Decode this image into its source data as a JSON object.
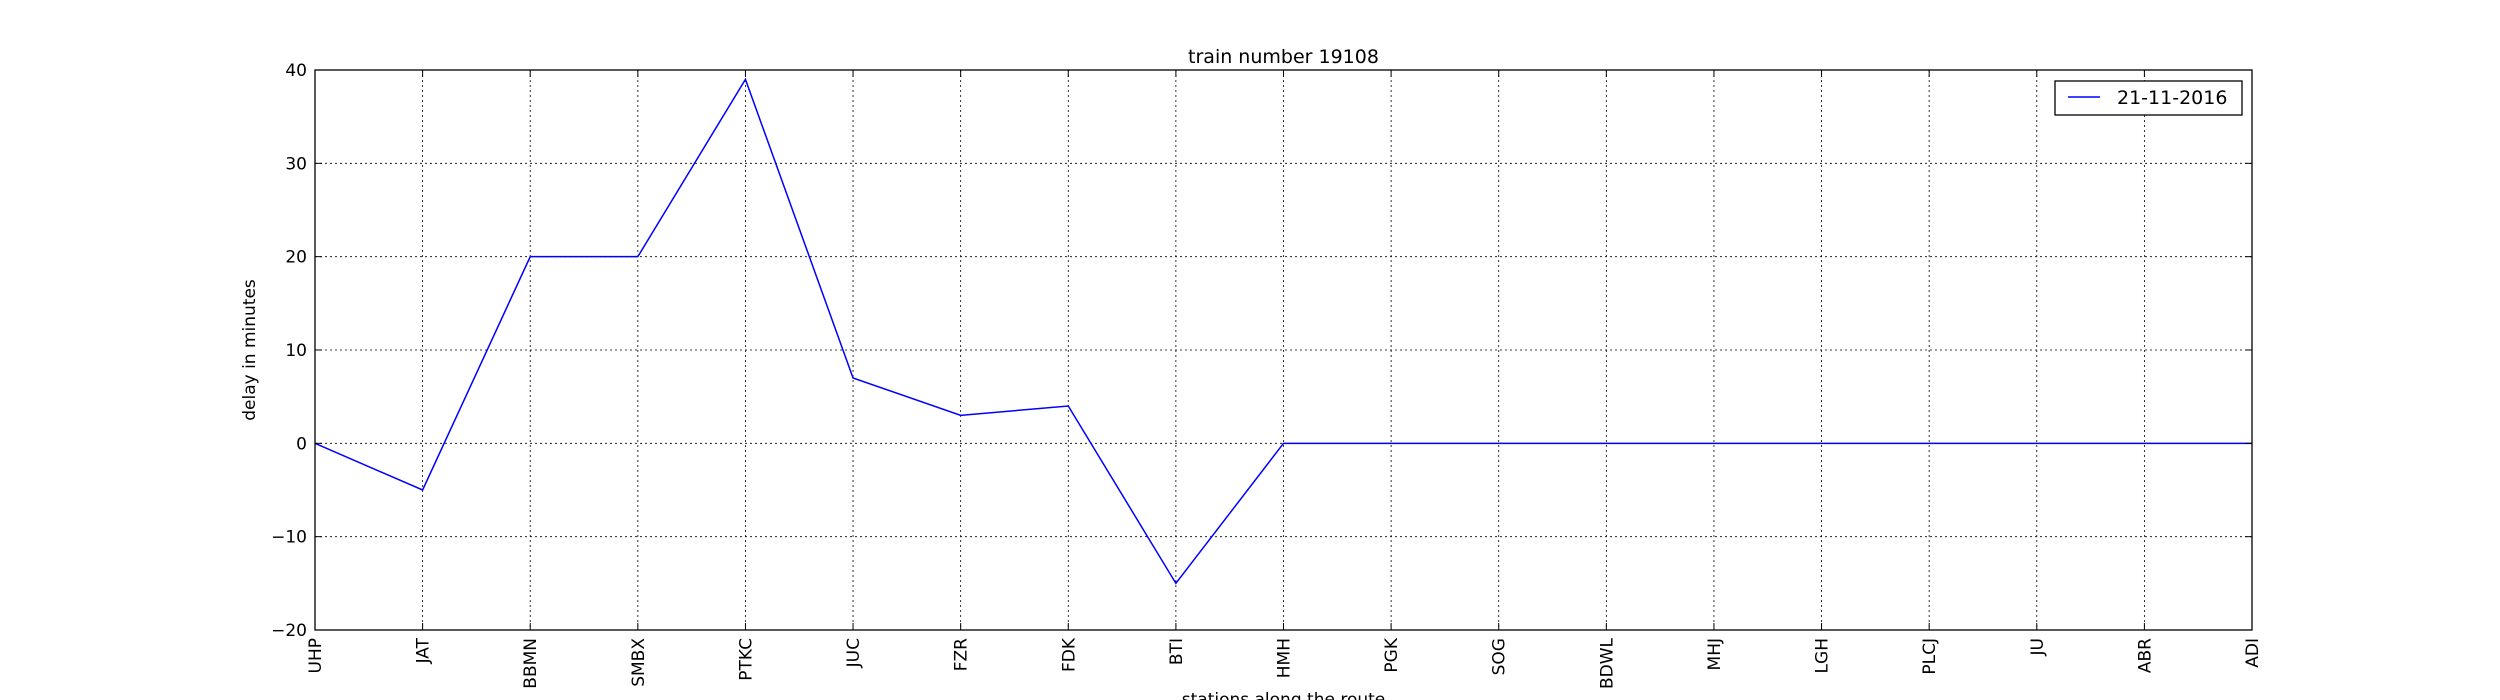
{
  "chart_data": {
    "type": "line",
    "title": "train number 19108",
    "xlabel": "stations along the route",
    "ylabel": "delay in minutes",
    "categories": [
      "UHP",
      "JAT",
      "BBMN",
      "SMBX",
      "PTKC",
      "JUC",
      "FZR",
      "FDK",
      "BTI",
      "HMH",
      "PGK",
      "SOG",
      "BDWL",
      "MHJ",
      "LGH",
      "PLCJ",
      "JU",
      "ABR",
      "ADI"
    ],
    "series": [
      {
        "name": "21-11-2016",
        "color": "#0000ff",
        "values": [
          0,
          -5,
          20,
          20,
          39,
          7,
          3,
          4,
          -15,
          0,
          0,
          0,
          0,
          0,
          0,
          0,
          0,
          0,
          0
        ]
      }
    ],
    "ylim": [
      -20,
      40
    ],
    "yticks": [
      -20,
      -10,
      0,
      10,
      20,
      30,
      40
    ],
    "ytick_labels": [
      "−20",
      "−10",
      "0",
      "10",
      "20",
      "30",
      "40"
    ],
    "grid": true,
    "legend_position": "top-right"
  }
}
